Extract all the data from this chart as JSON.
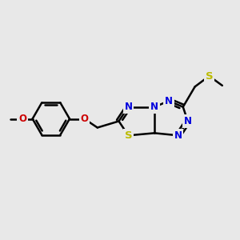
{
  "bg_color": "#e8e8e8",
  "bond_color": "#000000",
  "bond_width": 1.8,
  "atom_colors": {
    "N": "#0000dd",
    "S": "#bbbb00",
    "O": "#cc0000",
    "C": "#000000"
  },
  "font_size": 8.5,
  "figsize": [
    3.0,
    3.0
  ],
  "dpi": 100
}
